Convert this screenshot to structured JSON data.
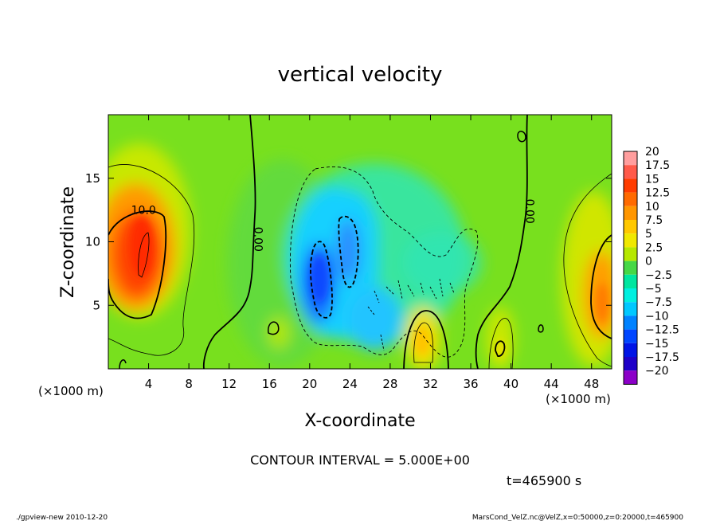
{
  "chart_data": {
    "type": "contour",
    "title": "vertical velocity",
    "xlabel": "X-coordinate",
    "ylabel": "Z-coordinate",
    "x_unit": "(×1000 m)",
    "y_unit": "(×1000 m)",
    "xlim": [
      0,
      50
    ],
    "ylim": [
      0,
      20
    ],
    "x_ticks": [
      4,
      8,
      12,
      16,
      20,
      24,
      28,
      32,
      36,
      40,
      44,
      48
    ],
    "y_ticks": [
      5,
      10,
      15
    ],
    "contour_interval_text": "CONTOUR INTERVAL = 5.000E+00",
    "time_text": "t=465900 s",
    "contour_labels": [
      {
        "text": "10.0",
        "x": 3.5,
        "y": 12.2
      },
      {
        "text": "0.00",
        "x": 14.5,
        "y": 10.2
      },
      {
        "text": "0.00",
        "x": 41.5,
        "y": 12.4
      }
    ],
    "colorbar": {
      "levels": [
        "20",
        "17.5",
        "15",
        "12.5",
        "10",
        "7.5",
        "5",
        "2.5",
        "0",
        "-2.5",
        "-5",
        "-7.5",
        "-10",
        "-12.5",
        "-15",
        "-17.5",
        "-20"
      ],
      "colors": [
        "#ff9e9e",
        "#ff5a4a",
        "#ff3c00",
        "#ff6a00",
        "#ff9600",
        "#ffc800",
        "#f0e800",
        "#b6e800",
        "#46d846",
        "#00e6a0",
        "#00f0e0",
        "#00c8ff",
        "#0082ff",
        "#0046ff",
        "#0014e6",
        "#1e00c8",
        "#8c00c8"
      ]
    },
    "features": [
      {
        "sign": "positive",
        "x": 3.5,
        "z": 9.0,
        "peak": 15
      },
      {
        "sign": "positive",
        "x": 49.0,
        "z": 6.5,
        "peak": 12
      },
      {
        "sign": "negative",
        "x": 21.5,
        "z": 7.5,
        "peak": -12
      },
      {
        "sign": "negative",
        "x": 23.5,
        "z": 10.0,
        "peak": -10
      },
      {
        "sign": "positive",
        "x": 31.0,
        "z": 2.5,
        "peak": 8
      }
    ]
  },
  "footer": {
    "left": "./gpview-new  2010-12-20",
    "right": "MarsCond_VelZ.nc@VelZ,x=0:50000,z=0:20000,t=465900"
  }
}
